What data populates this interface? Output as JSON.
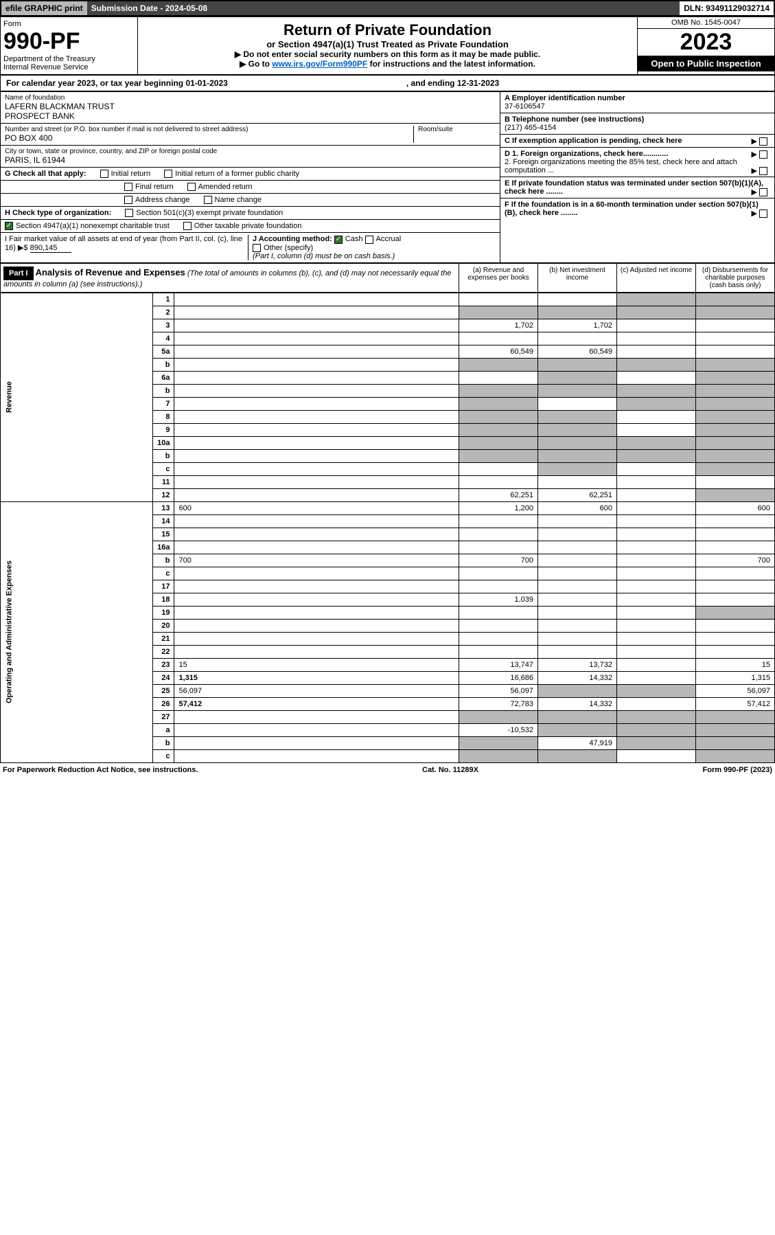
{
  "topbar": {
    "efile": "efile GRAPHIC print",
    "subdate": "Submission Date - 2024-05-08",
    "dln": "DLN: 93491129032714"
  },
  "header": {
    "form_label": "Form",
    "form_number": "990-PF",
    "dept": "Department of the Treasury\nInternal Revenue Service",
    "title": "Return of Private Foundation",
    "subtitle": "or Section 4947(a)(1) Trust Treated as Private Foundation",
    "note1": "▶ Do not enter social security numbers on this form as it may be made public.",
    "note2_prefix": "▶ Go to ",
    "note2_link": "www.irs.gov/Form990PF",
    "note2_suffix": " for instructions and the latest information.",
    "omb": "OMB No. 1545-0047",
    "year": "2023",
    "inspection": "Open to Public Inspection"
  },
  "calendar": {
    "text": "For calendar year 2023, or tax year beginning 01-01-2023",
    "ending": ", and ending 12-31-2023"
  },
  "foundation": {
    "name_label": "Name of foundation",
    "name": "LAFERN BLACKMAN TRUST\nPROSPECT BANK",
    "addr_label": "Number and street (or P.O. box number if mail is not delivered to street address)",
    "addr": "PO BOX 400",
    "room_label": "Room/suite",
    "city_label": "City or town, state or province, country, and ZIP or foreign postal code",
    "city": "PARIS, IL  61944",
    "ein_label": "A Employer identification number",
    "ein": "37-6106547",
    "phone_label": "B Telephone number (see instructions)",
    "phone": "(217) 465-4154",
    "c_label": "C If exemption application is pending, check here",
    "d1": "D 1. Foreign organizations, check here............",
    "d2": "2. Foreign organizations meeting the 85% test, check here and attach computation ...",
    "e_label": "E If private foundation status was terminated under section 507(b)(1)(A), check here ........",
    "f_label": "F If the foundation is in a 60-month termination under section 507(b)(1)(B), check here ........"
  },
  "checks": {
    "g_label": "G Check all that apply:",
    "initial": "Initial return",
    "initial_former": "Initial return of a former public charity",
    "final": "Final return",
    "amended": "Amended return",
    "address": "Address change",
    "name": "Name change",
    "h_label": "H Check type of organization:",
    "h1": "Section 501(c)(3) exempt private foundation",
    "h2": "Section 4947(a)(1) nonexempt charitable trust",
    "h3": "Other taxable private foundation",
    "i_label": "I Fair market value of all assets at end of year (from Part II, col. (c), line 16) ▶$",
    "i_value": "890,145",
    "j_label": "J Accounting method:",
    "j_cash": "Cash",
    "j_accrual": "Accrual",
    "j_other": "Other (specify)",
    "j_note": "(Part I, column (d) must be on cash basis.)"
  },
  "part1": {
    "label": "Part I",
    "title": "Analysis of Revenue and Expenses",
    "title_note": "(The total of amounts in columns (b), (c), and (d) may not necessarily equal the amounts in column (a) (see instructions).)",
    "col_a": "(a) Revenue and expenses per books",
    "col_b": "(b) Net investment income",
    "col_c": "(c) Adjusted net income",
    "col_d": "(d) Disbursements for charitable purposes (cash basis only)"
  },
  "sections": {
    "revenue": "Revenue",
    "expenses": "Operating and Administrative Expenses"
  },
  "rows": [
    {
      "n": "1",
      "d": "",
      "a": "",
      "b": "",
      "c": "",
      "shade_b": false,
      "shade_c": true,
      "shade_d": true
    },
    {
      "n": "2",
      "d": "",
      "a": "",
      "b": "",
      "c": "",
      "shade_a": true,
      "shade_b": true,
      "shade_c": true,
      "shade_d": true
    },
    {
      "n": "3",
      "d": "",
      "a": "1,702",
      "b": "1,702",
      "c": ""
    },
    {
      "n": "4",
      "d": "",
      "a": "",
      "b": "",
      "c": ""
    },
    {
      "n": "5a",
      "d": "",
      "a": "60,549",
      "b": "60,549",
      "c": ""
    },
    {
      "n": "b",
      "d": "",
      "a": "",
      "b": "",
      "c": "",
      "shade_a": true,
      "shade_b": true,
      "shade_c": true,
      "shade_d": true
    },
    {
      "n": "6a",
      "d": "",
      "a": "",
      "b": "",
      "c": "",
      "shade_b": true,
      "shade_d": true
    },
    {
      "n": "b",
      "d": "",
      "a": "",
      "b": "",
      "c": "",
      "shade_a": true,
      "shade_b": true,
      "shade_c": true,
      "shade_d": true
    },
    {
      "n": "7",
      "d": "",
      "a": "",
      "b": "",
      "c": "",
      "shade_a": true,
      "shade_c": true,
      "shade_d": true
    },
    {
      "n": "8",
      "d": "",
      "a": "",
      "b": "",
      "c": "",
      "shade_a": true,
      "shade_b": true,
      "shade_d": true
    },
    {
      "n": "9",
      "d": "",
      "a": "",
      "b": "",
      "c": "",
      "shade_a": true,
      "shade_b": true,
      "shade_d": true
    },
    {
      "n": "10a",
      "d": "",
      "a": "",
      "b": "",
      "c": "",
      "shade_a": true,
      "shade_b": true,
      "shade_c": true,
      "shade_d": true
    },
    {
      "n": "b",
      "d": "",
      "a": "",
      "b": "",
      "c": "",
      "shade_a": true,
      "shade_b": true,
      "shade_c": true,
      "shade_d": true
    },
    {
      "n": "c",
      "d": "",
      "a": "",
      "b": "",
      "c": "",
      "shade_b": true,
      "shade_d": true
    },
    {
      "n": "11",
      "d": "",
      "a": "",
      "b": "",
      "c": ""
    },
    {
      "n": "12",
      "d": "",
      "a": "62,251",
      "b": "62,251",
      "c": "",
      "bold": true,
      "shade_d": true
    },
    {
      "n": "13",
      "d": "600",
      "a": "1,200",
      "b": "600",
      "c": ""
    },
    {
      "n": "14",
      "d": "",
      "a": "",
      "b": "",
      "c": ""
    },
    {
      "n": "15",
      "d": "",
      "a": "",
      "b": "",
      "c": ""
    },
    {
      "n": "16a",
      "d": "",
      "a": "",
      "b": "",
      "c": ""
    },
    {
      "n": "b",
      "d": "700",
      "a": "700",
      "b": "",
      "c": ""
    },
    {
      "n": "c",
      "d": "",
      "a": "",
      "b": "",
      "c": ""
    },
    {
      "n": "17",
      "d": "",
      "a": "",
      "b": "",
      "c": ""
    },
    {
      "n": "18",
      "d": "",
      "a": "1,039",
      "b": "",
      "c": ""
    },
    {
      "n": "19",
      "d": "",
      "a": "",
      "b": "",
      "c": "",
      "shade_d": true
    },
    {
      "n": "20",
      "d": "",
      "a": "",
      "b": "",
      "c": ""
    },
    {
      "n": "21",
      "d": "",
      "a": "",
      "b": "",
      "c": ""
    },
    {
      "n": "22",
      "d": "",
      "a": "",
      "b": "",
      "c": ""
    },
    {
      "n": "23",
      "d": "15",
      "a": "13,747",
      "b": "13,732",
      "c": ""
    },
    {
      "n": "24",
      "d": "1,315",
      "a": "16,686",
      "b": "14,332",
      "c": "",
      "bold": true
    },
    {
      "n": "25",
      "d": "56,097",
      "a": "56,097",
      "b": "",
      "c": "",
      "shade_b": true,
      "shade_c": true
    },
    {
      "n": "26",
      "d": "57,412",
      "a": "72,783",
      "b": "14,332",
      "c": "",
      "bold": true
    },
    {
      "n": "27",
      "d": "",
      "a": "",
      "b": "",
      "c": "",
      "shade_a": true,
      "shade_b": true,
      "shade_c": true,
      "shade_d": true
    },
    {
      "n": "a",
      "d": "",
      "a": "-10,532",
      "b": "",
      "c": "",
      "bold": true,
      "shade_b": true,
      "shade_c": true,
      "shade_d": true
    },
    {
      "n": "b",
      "d": "",
      "a": "",
      "b": "47,919",
      "c": "",
      "bold": true,
      "shade_a": true,
      "shade_c": true,
      "shade_d": true
    },
    {
      "n": "c",
      "d": "",
      "a": "",
      "b": "",
      "c": "",
      "bold": true,
      "shade_a": true,
      "shade_b": true,
      "shade_d": true
    }
  ],
  "footer": {
    "left": "For Paperwork Reduction Act Notice, see instructions.",
    "center": "Cat. No. 11289X",
    "right": "Form 990-PF (2023)"
  }
}
